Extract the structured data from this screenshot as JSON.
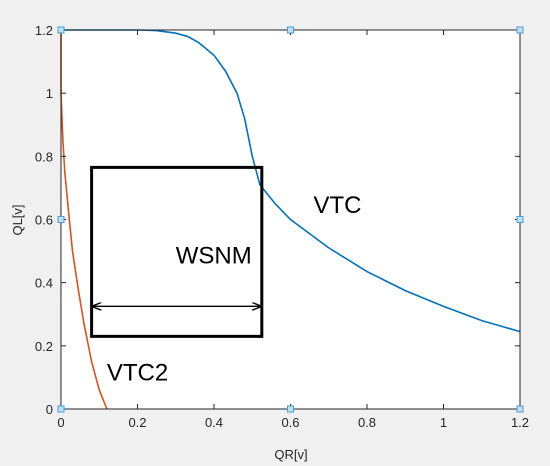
{
  "window": {
    "background": "#f0f0f0",
    "axes_background": "#ffffff"
  },
  "chart_data": {
    "type": "line",
    "title": "",
    "xlabel": "QR[v]",
    "ylabel": "QL[v]",
    "xlim": [
      0,
      1.2
    ],
    "ylim": [
      0,
      1.2
    ],
    "xticks": [
      0,
      0.2,
      0.4,
      0.6,
      0.8,
      1,
      1.2
    ],
    "xtick_labels": [
      "0",
      "0.2",
      "0.4",
      "0.6",
      "0.8",
      "1",
      "1.2"
    ],
    "yticks": [
      0,
      0.2,
      0.4,
      0.6,
      0.8,
      1,
      1.2
    ],
    "ytick_labels": [
      "0",
      "0.2",
      "0.4",
      "0.6",
      "0.8",
      "1",
      "1.2"
    ],
    "grid": false,
    "series": [
      {
        "name": "VTC",
        "color": "#0072bd",
        "x": [
          0,
          0.1,
          0.2,
          0.25,
          0.3,
          0.33,
          0.36,
          0.4,
          0.43,
          0.46,
          0.48,
          0.5,
          0.52,
          0.56,
          0.6,
          0.7,
          0.8,
          0.9,
          1.0,
          1.1,
          1.2
        ],
        "y": [
          1.2,
          1.2,
          1.2,
          1.198,
          1.19,
          1.18,
          1.16,
          1.12,
          1.07,
          1.0,
          0.92,
          0.8,
          0.71,
          0.65,
          0.6,
          0.51,
          0.435,
          0.375,
          0.325,
          0.28,
          0.245
        ]
      },
      {
        "name": "VTC2",
        "color": "#d95319",
        "x": [
          0.0,
          0.0,
          0.005,
          0.01,
          0.02,
          0.03,
          0.045,
          0.06,
          0.08,
          0.1,
          0.12
        ],
        "y": [
          1.2,
          1.0,
          0.85,
          0.75,
          0.62,
          0.5,
          0.38,
          0.27,
          0.15,
          0.06,
          0.0
        ]
      }
    ],
    "annotations": [
      {
        "text": "VTC",
        "x": 0.66,
        "y": 0.62
      },
      {
        "text": "VTC2",
        "x": 0.12,
        "y": 0.09
      },
      {
        "text": "WSNM",
        "x": 0.3,
        "y": 0.46
      }
    ],
    "box": {
      "x0": 0.08,
      "x1": 0.525,
      "y0": 0.23,
      "y1": 0.765,
      "color": "#000000"
    },
    "arrow": {
      "x0": 0.08,
      "x1": 0.525,
      "y": 0.325
    },
    "edit_handles_color": "#4a9fd8"
  }
}
